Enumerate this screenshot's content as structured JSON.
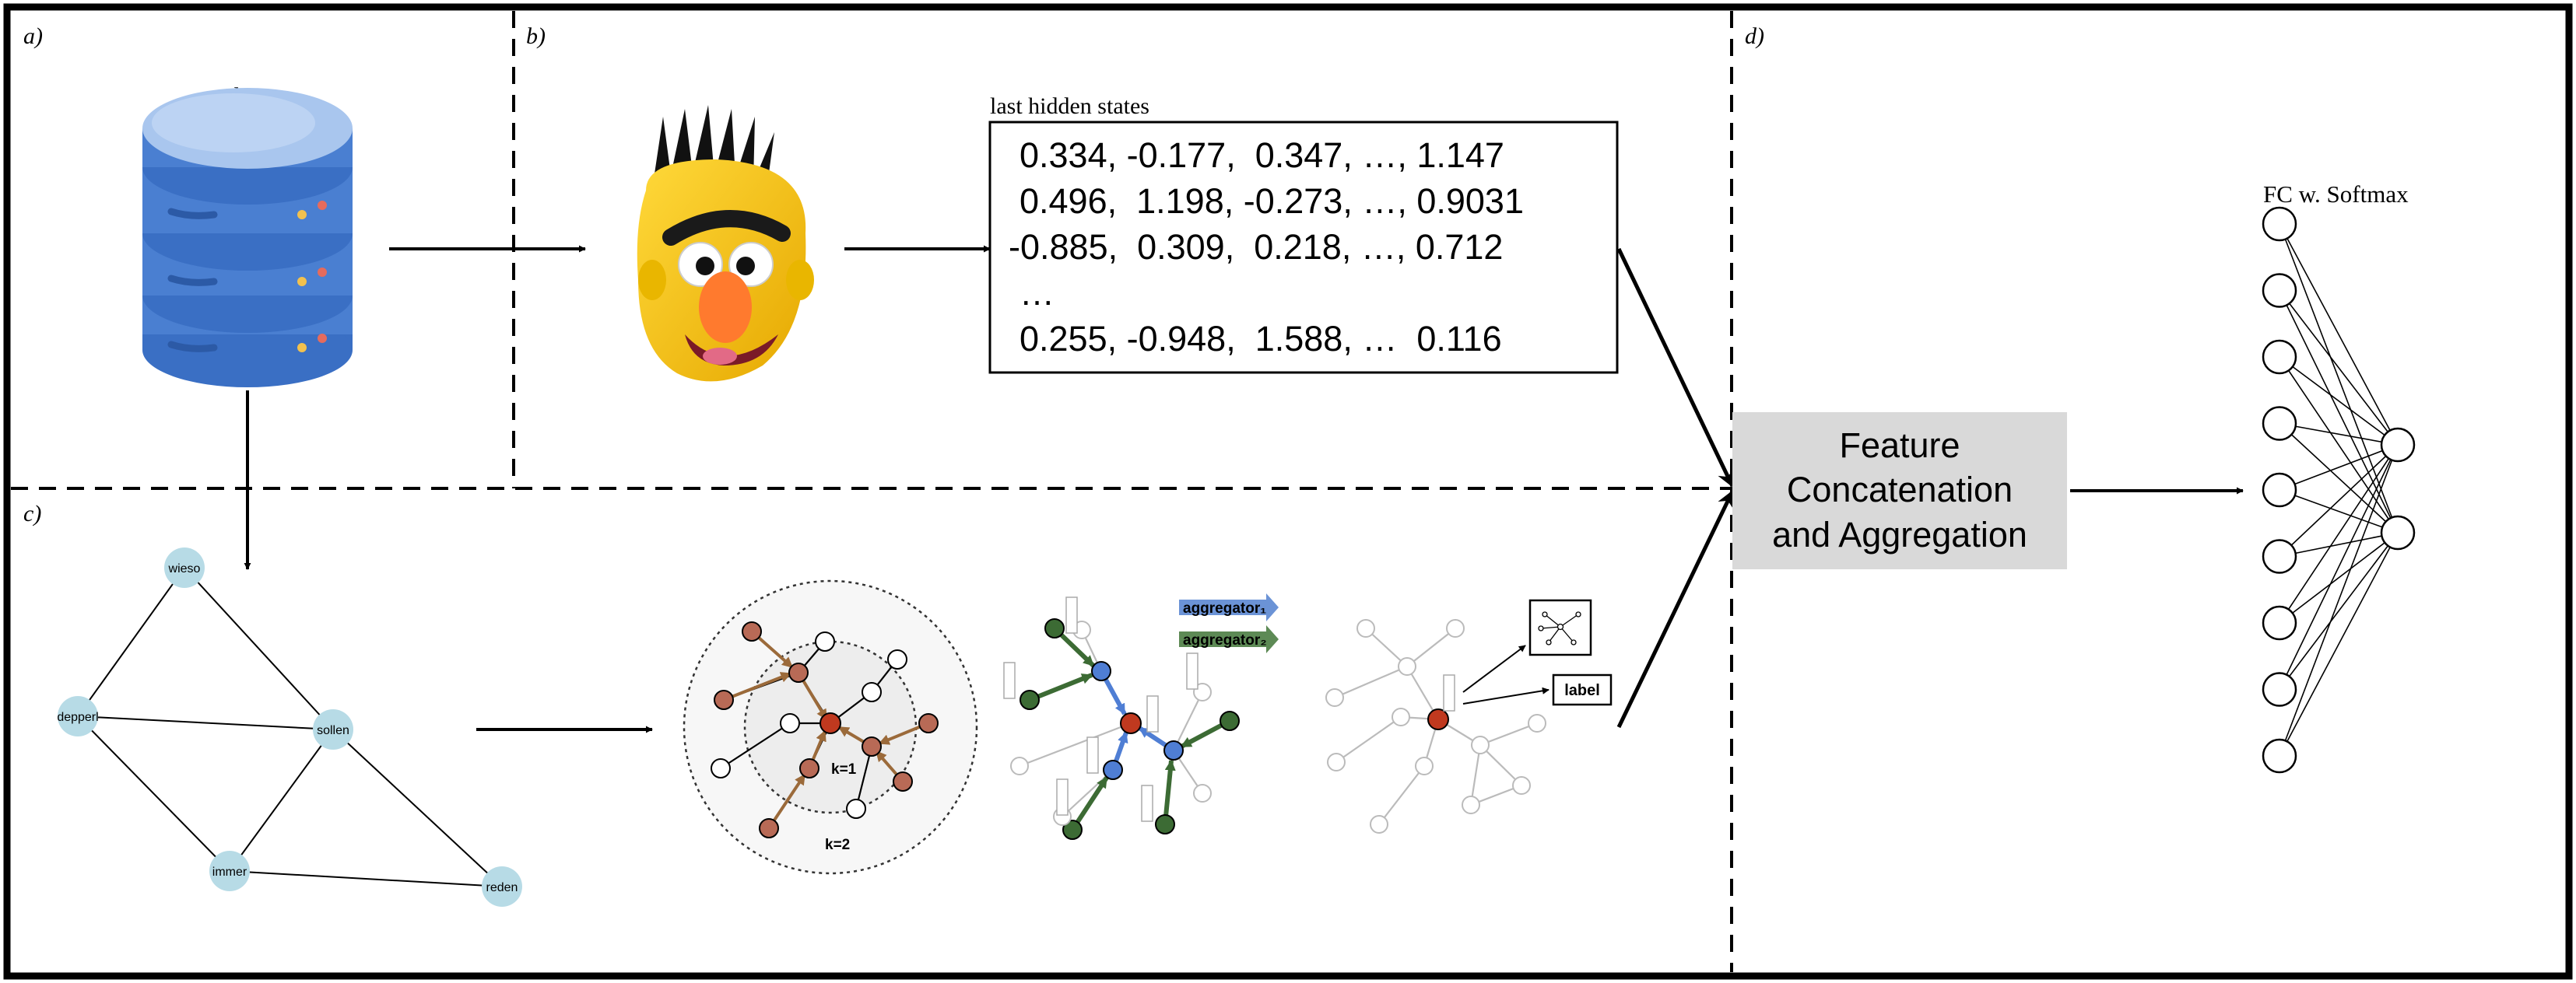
{
  "panels": {
    "a": "a)",
    "b": "b)",
    "c": "c)",
    "d": "d)"
  },
  "data_label": "data",
  "hidden_states": {
    "title": "last hidden states",
    "rows": [
      "0.334, -0.177,  0.347, …, 1.147",
      "0.496,  1.198, -0.273, …, 0.9031",
      "-0.885,  0.309,  0.218, …, 0.712",
      "…",
      "0.255, -0.948,  1.588, …  0.116"
    ]
  },
  "word_graph": {
    "nodes": [
      "wieso",
      "depperl",
      "sollen",
      "immer",
      "reden"
    ]
  },
  "gnn": {
    "k1": "k=1",
    "k2": "k=2",
    "aggregator1": "aggregator₁",
    "aggregator2": "aggregator₂",
    "label": "label"
  },
  "feature_box": [
    "Feature",
    "Concatenation",
    "and Aggregation"
  ],
  "fc_label": "FC w. Softmax",
  "colors": {
    "db_blue": "#4a7fd1",
    "db_light": "#a9c6ee",
    "graph_node": "#b7dbe6",
    "node_brown": "#b86a56",
    "node_red": "#c0391f",
    "node_blue": "#4f7ed4",
    "node_green": "#3c6b34",
    "feature_bg": "#d9d9d9"
  }
}
